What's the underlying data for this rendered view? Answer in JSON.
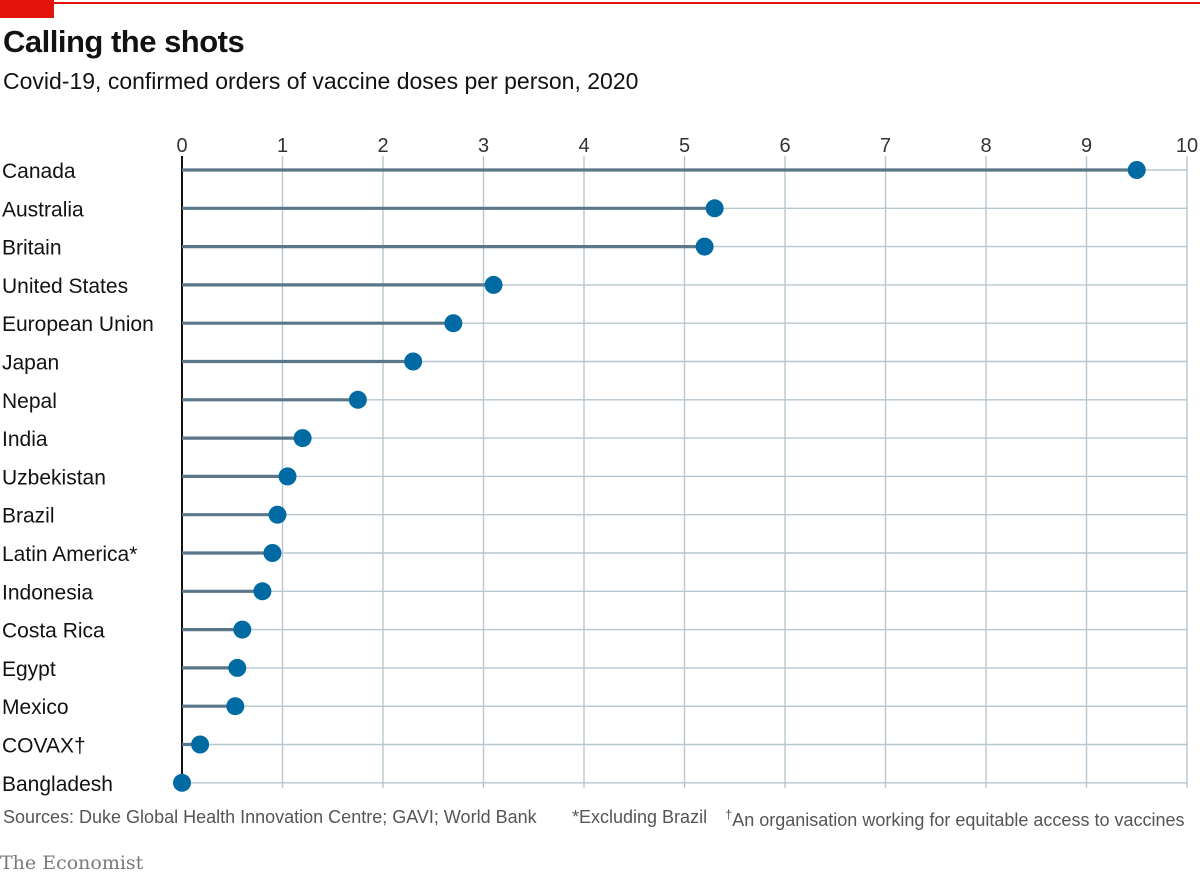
{
  "header": {
    "title": "Calling the shots",
    "subtitle": "Covid-19, confirmed orders of vaccine doses per person, 2020"
  },
  "footer": {
    "sources": "Sources: Duke Global Health Innovation Centre; GAVI; World Bank",
    "note_star": "*Excluding Brazil",
    "note_dagger_mark": "†",
    "note_dagger": "An organisation working for equitable access to vaccines"
  },
  "brand": "The Economist",
  "colors": {
    "accent_red": "#e3120b",
    "dot": "#006ba2",
    "stem": "#5a7789",
    "grid": "#b7c6cf"
  },
  "chart_data": {
    "type": "scatter",
    "style": "lollipop",
    "xlim": [
      0,
      10
    ],
    "x_ticks": [
      "0",
      "1",
      "2",
      "3",
      "4",
      "5",
      "6",
      "7",
      "8",
      "9",
      "10"
    ],
    "x_axis_position": "top",
    "grid": true,
    "legend": "none",
    "categories": [
      "Canada",
      "Australia",
      "Britain",
      "United States",
      "European Union",
      "Japan",
      "Nepal",
      "India",
      "Uzbekistan",
      "Brazil",
      "Latin America*",
      "Indonesia",
      "Costa Rica",
      "Egypt",
      "Mexico",
      "COVAX†",
      "Bangladesh"
    ],
    "values": [
      9.5,
      5.3,
      5.2,
      3.1,
      2.7,
      2.3,
      1.75,
      1.2,
      1.05,
      0.95,
      0.9,
      0.8,
      0.6,
      0.55,
      0.53,
      0.18,
      0.0
    ]
  }
}
